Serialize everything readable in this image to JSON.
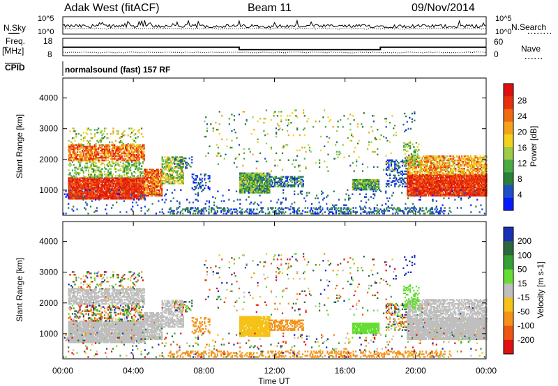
{
  "header": {
    "station": "Adak West (fitACF)",
    "beam": "Beam 11",
    "date": "09/Nov/2014"
  },
  "noise_panel": {
    "left_label": "N.Sky",
    "right_label": "N.Search",
    "left_ticks": [
      "10^5",
      "10^0"
    ],
    "right_ticks": [
      "10^5",
      "10^0"
    ]
  },
  "freq_panel": {
    "left_label": "Freq.",
    "left_unit": "[MHz]",
    "left_ticks": [
      "18",
      "8"
    ],
    "right_label": "Nave",
    "right_ticks": [
      "60",
      "0"
    ],
    "cpid_label": "CPID",
    "cpid_text": "normalsound (fast) 157 RF",
    "freq_steps": [
      {
        "from_hour": 0,
        "to_hour": 10,
        "mhz": 12.2
      },
      {
        "from_hour": 10,
        "to_hour": 18,
        "mhz": 10.2
      },
      {
        "from_hour": 18,
        "to_hour": 24,
        "mhz": 12.2
      }
    ]
  },
  "chart_data": [
    {
      "type": "heatmap",
      "name": "power",
      "ylabel": "Slant Range [km]",
      "yticks": [
        "1000",
        "2000",
        "3000",
        "4000"
      ],
      "ylim": [
        180,
        4650
      ],
      "colorbar_label": "Power [dB]",
      "colorbar_ticks": [
        "4",
        "8",
        "12",
        "16",
        "20",
        "24",
        "28"
      ],
      "color_levels": [
        "#0a1aff",
        "#1e4fc8",
        "#2a7f3a",
        "#4aab44",
        "#9bcc4a",
        "#f2d21c",
        "#f3a21a",
        "#ef6a12",
        "#e83010",
        "#dd1010"
      ]
    },
    {
      "type": "heatmap",
      "name": "velocity",
      "ylabel": "Slant Range [km]",
      "yticks": [
        "1000",
        "2000",
        "3000",
        "4000"
      ],
      "ylim": [
        180,
        4650
      ],
      "colorbar_label": "Velocity [m s-1]",
      "colorbar_ticks": [
        "200",
        "100",
        "50",
        "15",
        "-15",
        "-50",
        "-100",
        "-200"
      ],
      "color_levels": [
        "#1a2fb8",
        "#2a6a3a",
        "#33a034",
        "#66dd33",
        "#bfbfbf",
        "#f5c21a",
        "#f4921a",
        "#ee5512",
        "#e01010"
      ]
    }
  ],
  "xaxis": {
    "label": "Time UT",
    "ticks": [
      "00:00",
      "04:00",
      "08:00",
      "12:00",
      "16:00",
      "20:00",
      "00:00"
    ],
    "xlim_hours": [
      0,
      24
    ]
  },
  "colors": {
    "axis": "#000000",
    "background": "#ffffff",
    "ground_scatter": "#bfbfbf"
  }
}
